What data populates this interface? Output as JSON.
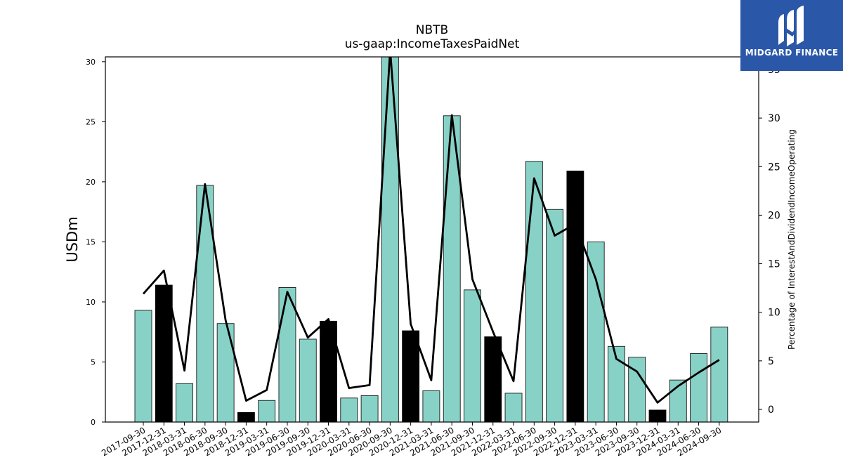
{
  "logo": {
    "text": "MIDGARD FINANCE",
    "icon": "midgard-logo-icon",
    "background": "#2a57a8"
  },
  "chart_data": {
    "type": "bar",
    "title": "NBTB",
    "subtitle": "us-gaap:IncomeTaxesPaidNet",
    "ylabel": "USDm",
    "y2label": "Percentage of InterestAndDividendIncomeOperating",
    "ylim": [
      0,
      30.4
    ],
    "y2lim": [
      -1.3,
      36.3
    ],
    "yticks": [
      0,
      5,
      10,
      15,
      20,
      25,
      30
    ],
    "y2ticks": [
      0,
      5,
      10,
      15,
      20,
      25,
      30,
      35
    ],
    "categories": [
      "2017-09-30",
      "2017-12-31",
      "2018-03-31",
      "2018-06-30",
      "2018-09-30",
      "2018-12-31",
      "2019-03-31",
      "2019-06-30",
      "2019-09-30",
      "2019-12-31",
      "2020-03-31",
      "2020-06-30",
      "2020-09-30",
      "2020-12-31",
      "2021-03-31",
      "2021-06-30",
      "2021-09-30",
      "2021-12-31",
      "2022-03-31",
      "2022-06-30",
      "2022-09-30",
      "2022-12-31",
      "2023-03-31",
      "2023-06-30",
      "2023-09-30",
      "2023-12-31",
      "2024-03-31",
      "2024-06-30",
      "2024-09-30"
    ],
    "series": [
      {
        "chart": "bar",
        "axis": "left",
        "values": [
          9.3,
          11.4,
          3.2,
          19.7,
          8.2,
          0.8,
          1.8,
          11.2,
          6.9,
          8.4,
          2.0,
          2.2,
          30.4,
          7.6,
          2.6,
          25.5,
          11.0,
          7.1,
          2.4,
          21.7,
          17.7,
          20.9,
          15.0,
          6.3,
          5.4,
          1.0,
          3.5,
          5.7,
          7.9
        ],
        "highlight": [
          false,
          true,
          false,
          false,
          false,
          true,
          false,
          false,
          false,
          true,
          false,
          false,
          false,
          true,
          false,
          false,
          false,
          true,
          false,
          false,
          false,
          true,
          false,
          false,
          false,
          true,
          false,
          false,
          false
        ]
      },
      {
        "chart": "line",
        "axis": "right",
        "values": [
          11.9,
          14.3,
          4.0,
          23.2,
          9.2,
          0.9,
          2.0,
          12.1,
          7.4,
          9.3,
          2.2,
          2.5,
          37.0,
          8.8,
          3.0,
          30.3,
          13.4,
          8.0,
          2.9,
          23.8,
          17.9,
          19.1,
          13.4,
          5.2,
          3.9,
          0.7,
          2.4,
          3.8,
          5.1
        ]
      }
    ],
    "colors": {
      "bar": "#88d1c6",
      "bar_highlight": "#000000",
      "line": "#000000"
    },
    "grid": false,
    "legend": "none"
  }
}
